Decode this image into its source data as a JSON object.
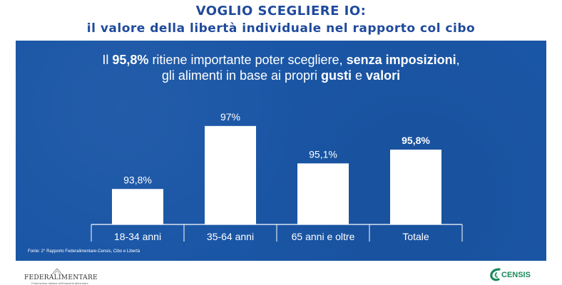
{
  "header": {
    "title_line1": "VOGLIO SCEGLIERE IO:",
    "title_line2": "il valore della libertà individuale nel rapporto col cibo"
  },
  "headline": {
    "p1": "Il ",
    "b1": "95,8%",
    "p2": " ritiene importante poter scegliere, ",
    "b2": "senza imposizioni",
    "p3": ",",
    "p4": "gli alimenti in base ai propri ",
    "b3": "gusti",
    "p5": " e ",
    "b4": "valori"
  },
  "chart_data": {
    "type": "bar",
    "categories": [
      "18-34 anni",
      "35-64 anni",
      "65 anni e oltre",
      "Totale"
    ],
    "values": [
      93.8,
      97.0,
      95.1,
      95.8
    ],
    "value_labels": [
      "93,8%",
      "97%",
      "95,1%",
      "95,8%"
    ],
    "highlighted": [
      false,
      false,
      false,
      true
    ],
    "ylim": [
      92,
      97.5
    ],
    "bar_color": "#ffffff",
    "background_color": "#1a56a6",
    "grid": false
  },
  "source": "Fonte: 2° Rapporto Federalimentare-Censis, Cibo e Libertà",
  "logos": {
    "federalimentare": "FEDERALIMENTARE",
    "federalimentare_sub": "Federazione Italiana dell'Industria Alimentare",
    "censis": "CENSIS"
  },
  "colors": {
    "title": "#1f4a9c",
    "panel": "#1a56a6",
    "censis": "#1a8a5a"
  }
}
